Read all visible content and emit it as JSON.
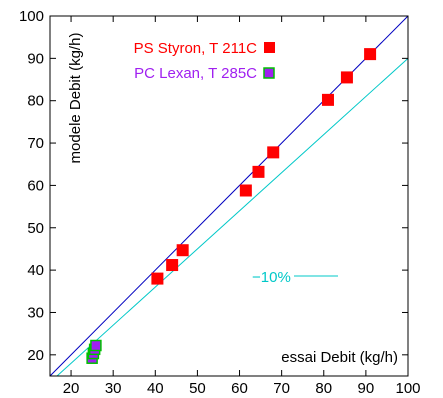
{
  "chart_data": {
    "type": "scatter",
    "xlabel": "essai Debit (kg/h)",
    "ylabel": "modele Debit (kg/h)",
    "xlim": [
      15,
      100
    ],
    "ylim": [
      15,
      100
    ],
    "xticks": [
      20,
      30,
      40,
      50,
      60,
      70,
      80,
      90,
      100
    ],
    "yticks": [
      20,
      30,
      40,
      50,
      60,
      70,
      80,
      90,
      100
    ],
    "series": [
      {
        "name": "PS Styron, T 211C",
        "color": "#ff0000",
        "marker": "square",
        "points": [
          [
            40.5,
            38
          ],
          [
            44,
            41.2
          ],
          [
            46.5,
            44.7
          ],
          [
            61.5,
            58.8
          ],
          [
            64.5,
            63.2
          ],
          [
            68,
            67.8
          ],
          [
            81,
            80.2
          ],
          [
            85.5,
            85.5
          ],
          [
            91,
            91
          ]
        ]
      },
      {
        "name": "PC Lexan,  T 285C",
        "color": "#a020f0",
        "edge_color": "#00c000",
        "marker": "square",
        "points": [
          [
            25,
            19.2
          ],
          [
            25.3,
            20.3
          ],
          [
            25.6,
            21.3
          ],
          [
            25.9,
            22.2
          ]
        ]
      }
    ],
    "lines": [
      {
        "name": "y = x",
        "color": "#0000c0",
        "slope": 1.0
      },
      {
        "name": "-10%",
        "color": "#00c8c8",
        "slope": 0.9
      }
    ],
    "annotation": {
      "text": "−10%",
      "color": "#00c8c8"
    },
    "legend_position": "top-left",
    "grid": false
  }
}
